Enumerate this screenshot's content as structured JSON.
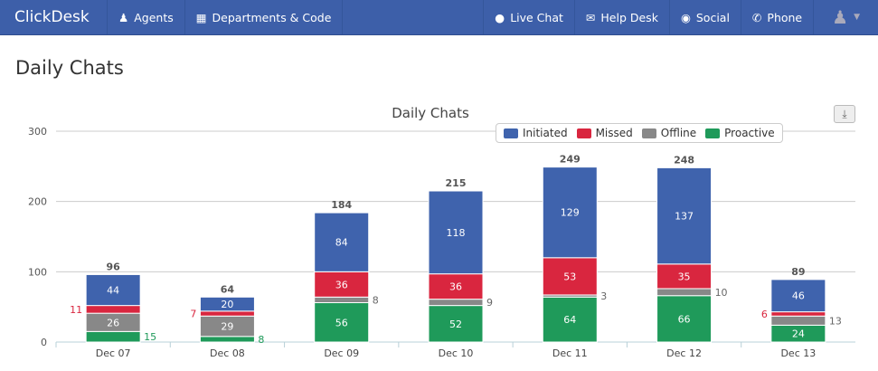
{
  "nav": {
    "brand": "ClickDesk",
    "left": [
      {
        "label": "Agents",
        "icon": "user-icon"
      },
      {
        "label": "Departments & Code",
        "icon": "grid-icon"
      }
    ],
    "right": [
      {
        "label": "Live Chat",
        "icon": "chat-bubble-icon"
      },
      {
        "label": "Help Desk",
        "icon": "envelope-icon"
      },
      {
        "label": "Social",
        "icon": "globe-icon"
      },
      {
        "label": "Phone",
        "icon": "phone-icon"
      }
    ]
  },
  "page_title": "Daily Chats",
  "chart_data": {
    "type": "bar",
    "stacked": true,
    "title": "Daily Chats",
    "xlabel": "",
    "ylabel": "",
    "ylim": [
      0,
      300
    ],
    "yticks": [
      0,
      100,
      200,
      300
    ],
    "grid": true,
    "legend_position": "top-right",
    "categories": [
      "Dec 07",
      "Dec 08",
      "Dec 09",
      "Dec 10",
      "Dec 11",
      "Dec 12",
      "Dec 13"
    ],
    "totals": [
      96,
      64,
      184,
      215,
      249,
      248,
      89
    ],
    "series": [
      {
        "name": "Proactive",
        "color": "#1f9a5a",
        "values": [
          15,
          8,
          56,
          52,
          64,
          66,
          24
        ]
      },
      {
        "name": "Offline",
        "color": "#888888",
        "values": [
          26,
          29,
          8,
          9,
          3,
          10,
          13
        ]
      },
      {
        "name": "Missed",
        "color": "#d9263f",
        "values": [
          11,
          7,
          36,
          36,
          53,
          35,
          6
        ]
      },
      {
        "name": "Initiated",
        "color": "#3f63ad",
        "values": [
          44,
          20,
          84,
          118,
          129,
          137,
          46
        ]
      }
    ],
    "legend_order": [
      "Initiated",
      "Missed",
      "Offline",
      "Proactive"
    ]
  }
}
